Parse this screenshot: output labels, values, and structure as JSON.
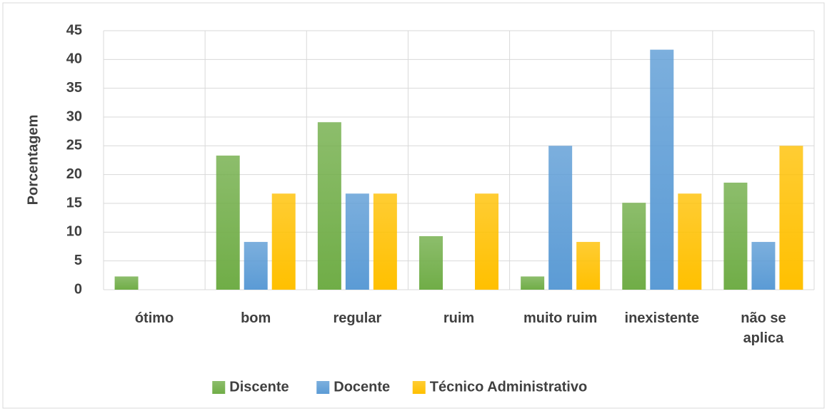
{
  "chart_data": {
    "type": "bar",
    "y_label": "Porcentagem",
    "categories": [
      "ótimo",
      "bom",
      "regular",
      "ruim",
      "muito ruim",
      "inexistente",
      "não se aplica"
    ],
    "series": [
      {
        "name": "Discente",
        "color": "#70ad47",
        "values": [
          2.3,
          23.3,
          29.1,
          9.3,
          2.3,
          15.1,
          18.6
        ]
      },
      {
        "name": "Docente",
        "color": "#5b9bd5",
        "values": [
          0,
          8.3,
          16.7,
          0,
          25,
          41.7,
          8.3
        ]
      },
      {
        "name": "Técnico Administrativo",
        "color": "#ffc000",
        "values": [
          0,
          16.7,
          16.7,
          16.7,
          8.3,
          16.7,
          25
        ]
      }
    ],
    "ylim": [
      0,
      45
    ],
    "yticks": [
      0,
      5,
      10,
      15,
      20,
      25,
      30,
      35,
      40,
      45
    ],
    "grid": true,
    "legend": "bottom"
  }
}
